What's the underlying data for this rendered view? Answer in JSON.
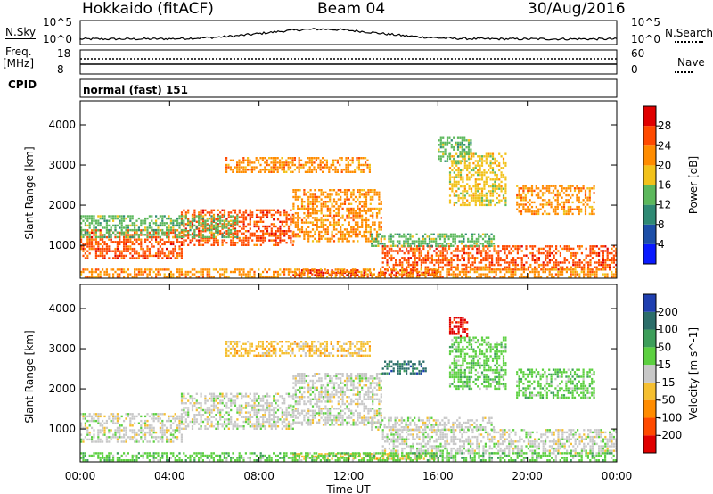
{
  "header": {
    "station": "Hokkaido (fitACF)",
    "beam": "Beam 04",
    "date": "30/Aug/2016"
  },
  "noise_panel": {
    "left_label": "N.Sky",
    "right_label": "N.Search",
    "left_ticks": [
      "10^5",
      "10^0"
    ],
    "right_ticks": [
      "10^5",
      "10^0"
    ]
  },
  "freq_panel": {
    "left_label_top": "Freq.",
    "left_label_bottom": "[MHz]",
    "left_ticks": [
      "18",
      "8"
    ],
    "right_ticks": [
      "60",
      "0"
    ],
    "right_label": "Nave",
    "cpid_label": "CPID",
    "cpid_text": "normal (fast) 151"
  },
  "chart_data": [
    {
      "type": "heatmap",
      "title": "",
      "xlabel": "Time UT",
      "ylabel": "Slant Range [km]",
      "x_ticks": [
        "00:00",
        "04:00",
        "08:00",
        "12:00",
        "16:00",
        "20:00",
        "00:00"
      ],
      "x_range_hours": [
        0,
        24
      ],
      "y_ticks": [
        "1000",
        "2000",
        "3000",
        "4000"
      ],
      "y_tick_values": [
        1000,
        2000,
        3000,
        4000
      ],
      "ylim": [
        180,
        4600
      ],
      "colorbar": {
        "label": "Power [dB]",
        "ticks": [
          "4",
          "8",
          "12",
          "16",
          "20",
          "24",
          "28"
        ],
        "colors": [
          "#0a1aff",
          "#1d4fa8",
          "#2f8a74",
          "#5cb85c",
          "#f2c21a",
          "#ff8c00",
          "#ff4a00",
          "#e00000"
        ]
      },
      "regions": [
        {
          "t0": 0.0,
          "t1": 4.5,
          "r0": 700,
          "r1": 1400,
          "color": 6
        },
        {
          "t0": 4.5,
          "t1": 9.5,
          "r0": 1000,
          "r1": 1900,
          "color": 6
        },
        {
          "t0": 9.5,
          "t1": 13.5,
          "r0": 1100,
          "r1": 2400,
          "color": 5
        },
        {
          "t0": 0.0,
          "t1": 7.0,
          "r0": 1200,
          "r1": 1750,
          "color": 3
        },
        {
          "t0": 6.5,
          "t1": 13.0,
          "r0": 2800,
          "r1": 3200,
          "color": 5
        },
        {
          "t0": 9.5,
          "t1": 16.0,
          "r0": 250,
          "r1": 400,
          "color": 7
        },
        {
          "t0": 13.5,
          "t1": 24.0,
          "r0": 400,
          "r1": 1000,
          "color": 6
        },
        {
          "t0": 13.0,
          "t1": 18.5,
          "r0": 1000,
          "r1": 1300,
          "color": 3
        },
        {
          "t0": 19.5,
          "t1": 23.0,
          "r0": 1800,
          "r1": 2500,
          "color": 5
        },
        {
          "t0": 16.5,
          "t1": 19.0,
          "r0": 2000,
          "r1": 3300,
          "color": 4
        },
        {
          "t0": 16.0,
          "t1": 17.5,
          "r0": 3100,
          "r1": 3700,
          "color": 3
        },
        {
          "t0": 0.0,
          "t1": 24.0,
          "r0": 200,
          "r1": 420,
          "color": 5
        }
      ]
    },
    {
      "type": "heatmap",
      "title": "",
      "xlabel": "Time UT",
      "ylabel": "Slant Range [km]",
      "x_ticks": [
        "00:00",
        "04:00",
        "08:00",
        "12:00",
        "16:00",
        "20:00",
        "00:00"
      ],
      "x_range_hours": [
        0,
        24
      ],
      "y_ticks": [
        "1000",
        "2000",
        "3000",
        "4000"
      ],
      "y_tick_values": [
        1000,
        2000,
        3000,
        4000
      ],
      "ylim": [
        180,
        4600
      ],
      "colorbar": {
        "label": "Velocity [m s^-1]",
        "ticks": [
          "200",
          "100",
          "50",
          "15",
          "-15",
          "-50",
          "-100",
          "-200"
        ],
        "colors": [
          "#1f3fb0",
          "#2c6e6a",
          "#3d9e5a",
          "#5cd040",
          "#c8c8c8",
          "#f5bf30",
          "#ff8c00",
          "#ff4a00",
          "#e00000"
        ]
      },
      "regions": [
        {
          "t0": 0.0,
          "t1": 4.5,
          "r0": 700,
          "r1": 1400,
          "color": 4
        },
        {
          "t0": 4.5,
          "t1": 9.5,
          "r0": 1000,
          "r1": 1900,
          "color": 4
        },
        {
          "t0": 9.5,
          "t1": 13.5,
          "r0": 1100,
          "r1": 2400,
          "color": 4
        },
        {
          "t0": 6.5,
          "t1": 13.0,
          "r0": 2800,
          "r1": 3200,
          "color": 5
        },
        {
          "t0": 9.5,
          "t1": 16.0,
          "r0": 250,
          "r1": 400,
          "color": 5
        },
        {
          "t0": 13.5,
          "t1": 24.0,
          "r0": 400,
          "r1": 1000,
          "color": 4
        },
        {
          "t0": 13.0,
          "t1": 18.5,
          "r0": 1000,
          "r1": 1300,
          "color": 4
        },
        {
          "t0": 19.5,
          "t1": 23.0,
          "r0": 1800,
          "r1": 2500,
          "color": 3
        },
        {
          "t0": 16.5,
          "t1": 19.0,
          "r0": 2000,
          "r1": 3300,
          "color": 3
        },
        {
          "t0": 13.5,
          "t1": 15.5,
          "r0": 2400,
          "r1": 2700,
          "color": 1
        },
        {
          "t0": 16.5,
          "t1": 17.3,
          "r0": 3300,
          "r1": 3800,
          "color": 8
        },
        {
          "t0": 0.0,
          "t1": 24.0,
          "r0": 200,
          "r1": 420,
          "color": 3
        }
      ]
    }
  ]
}
